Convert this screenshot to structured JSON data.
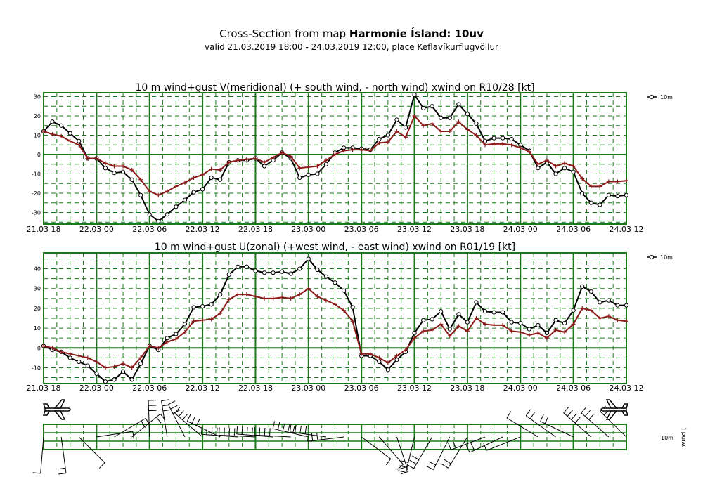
{
  "header": {
    "title_prefix": "Cross-Section from map",
    "title_bold": "Harmonie Ísland: 10uv",
    "subtitle": "valid 21.03.2019 18:00 - 24.03.2019 12:00, place Keflavíkurflugvöllur"
  },
  "colors": {
    "grid": "#1a7a1a",
    "wind": "#000000",
    "gust": "#8b1a1a",
    "background": "#ffffff"
  },
  "icons": [
    "airplane-left-icon",
    "airplane-right-icon"
  ],
  "bottom_panel": {
    "label_10m": "10m",
    "label_wind": "wind ["
  },
  "chart_data": [
    {
      "type": "line",
      "title": "10 m wind+gust V(meridional) (+ south wind, - north wind) xwind on R10/28 [kt]",
      "x_tick_labels": [
        "21.03 18",
        "22.03 00",
        "22.03 06",
        "22.03 12",
        "22.03 18",
        "23.03 00",
        "23.03 06",
        "23.03 12",
        "23.03 18",
        "24.03 00",
        "24.03 06",
        "24.03 12"
      ],
      "x_range_hours": [
        0,
        66
      ],
      "ylim": [
        -36,
        32
      ],
      "y_ticks": [
        30,
        20,
        10,
        0,
        -10,
        -20,
        -30
      ],
      "legend": "10m",
      "series": [
        {
          "name": "10m",
          "values": [
            12,
            17,
            15,
            11,
            7,
            -2,
            -2,
            -7,
            -9.5,
            -9,
            -13,
            -21,
            -31,
            -34.5,
            -31,
            -27,
            -23.5,
            -19.5,
            -18,
            -12,
            -13,
            -4,
            -3,
            -3,
            -2,
            -6,
            -3,
            1,
            -2,
            -12,
            -10.5,
            -10,
            -5,
            1,
            3.5,
            3.5,
            3,
            2.5,
            8,
            10,
            18,
            14,
            31,
            24,
            25,
            19,
            19,
            26,
            21,
            16,
            7,
            8.5,
            8.5,
            8,
            5,
            2,
            -7,
            -4,
            -10,
            -7,
            -9,
            -20,
            -25,
            -26,
            -21,
            -21.5,
            -21
          ]
        },
        {
          "name": "gust",
          "values": [
            12,
            10.5,
            9.5,
            7,
            5,
            -2,
            -2,
            -4.5,
            -6,
            -6,
            -8,
            -13,
            -19,
            -21,
            -19,
            -16.5,
            -14.5,
            -12,
            -10.5,
            -7.5,
            -8,
            -4,
            -3,
            -2.5,
            -2,
            -4,
            -1.5,
            1,
            -1,
            -7,
            -6.5,
            -6,
            -3,
            0,
            2,
            2.5,
            2.5,
            2,
            6,
            6.5,
            12,
            9,
            20,
            15,
            16,
            12,
            12,
            17,
            13,
            10,
            5,
            5.5,
            5.5,
            5,
            3.5,
            1.5,
            -5,
            -3,
            -6,
            -4.5,
            -6,
            -12.5,
            -16.5,
            -16.5,
            -14,
            -14,
            -13.5
          ]
        }
      ]
    },
    {
      "type": "line",
      "title": "10 m wind+gust U(zonal) (+west wind, - east wind) xwind on R01/19 [kt]",
      "x_tick_labels": [
        "21.03 18",
        "22.03 00",
        "22.03 06",
        "22.03 12",
        "22.03 18",
        "23.03 00",
        "23.03 06",
        "23.03 12",
        "23.03 18",
        "24.03 00",
        "24.03 06",
        "24.03 12"
      ],
      "x_range_hours": [
        0,
        66
      ],
      "ylim": [
        -18,
        48
      ],
      "y_ticks": [
        40,
        30,
        20,
        10,
        0,
        -10
      ],
      "legend": "10m",
      "series": [
        {
          "name": "10m",
          "values": [
            1,
            -1,
            -2,
            -5,
            -7,
            -9,
            -13,
            -17,
            -16,
            -12,
            -16,
            -8,
            1,
            -1,
            5,
            7,
            12,
            20.5,
            21,
            22,
            27,
            37,
            41,
            41,
            39,
            38,
            38,
            38.5,
            37.5,
            40,
            45,
            39.5,
            36,
            33,
            29,
            20.5,
            -4,
            -4,
            -7,
            -11,
            -6,
            -2,
            7.5,
            14,
            14.5,
            18.5,
            9.5,
            17,
            13,
            23,
            18.5,
            18,
            18,
            13,
            12.5,
            9.5,
            11.5,
            7.5,
            14,
            12.5,
            19,
            31,
            28.5,
            23,
            24,
            21.5,
            21.5
          ]
        },
        {
          "name": "gust",
          "values": [
            1,
            0,
            -2,
            -3,
            -4,
            -5,
            -7,
            -10,
            -9.5,
            -8,
            -10,
            -5,
            1,
            0,
            3,
            4.5,
            8,
            13.5,
            14,
            14.5,
            17.5,
            24.5,
            27,
            27,
            26,
            25,
            25,
            25.5,
            25,
            27,
            30,
            26,
            24,
            22,
            19,
            13.5,
            -3,
            -3,
            -5,
            -7.5,
            -4,
            -1,
            5,
            8.5,
            9,
            12,
            6,
            11,
            8.5,
            15,
            12,
            11.5,
            11.5,
            8.5,
            8,
            6.5,
            7.5,
            5,
            9,
            8,
            12,
            20,
            19,
            15,
            16,
            14,
            13.5
          ]
        }
      ]
    }
  ]
}
